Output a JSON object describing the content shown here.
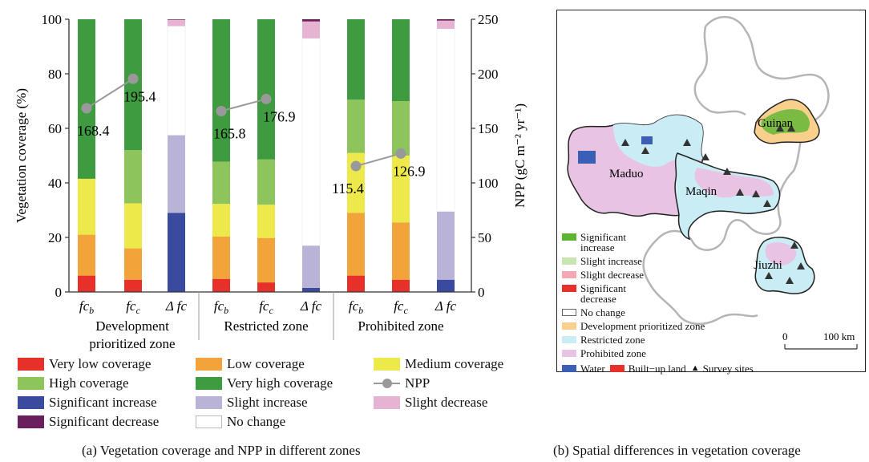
{
  "chart_data": [
    {
      "type": "bar",
      "subtype": "stacked-bar-with-line",
      "ylabel": "Vegetation coverage (%)",
      "y2label": "NPP (gC m⁻² yr⁻¹)",
      "ylim": [
        0,
        100
      ],
      "y2lim": [
        0,
        250
      ],
      "yticks": [
        "0",
        "20",
        "40",
        "60",
        "80",
        "100"
      ],
      "y2ticks": [
        "0",
        "50",
        "100",
        "150",
        "200",
        "250"
      ],
      "groups": [
        {
          "name_lines": [
            "Development",
            "prioritized zone"
          ],
          "categories": [
            "fc_b",
            "fc_c",
            "Δ fc"
          ]
        },
        {
          "name_lines": [
            "Restricted zone"
          ],
          "categories": [
            "fc_b",
            "fc_c",
            "Δ fc"
          ]
        },
        {
          "name_lines": [
            "Prohibited zone"
          ],
          "categories": [
            "fc_b",
            "fc_c",
            "Δ fc"
          ]
        }
      ],
      "coverage_series": [
        {
          "name": "Very low coverage",
          "color": "#e8302a",
          "values": [
            6,
            4.5,
            4.8,
            3.5,
            6,
            4.5
          ]
        },
        {
          "name": "Low coverage",
          "color": "#f2a43a",
          "values": [
            15,
            11.5,
            15.5,
            16.3,
            23,
            21
          ]
        },
        {
          "name": "Medium coverage",
          "color": "#ede94a",
          "values": [
            20.5,
            16.5,
            12,
            12.2,
            22,
            24.5
          ]
        },
        {
          "name": "High coverage",
          "color": "#8dc45c",
          "values": [
            0,
            19.5,
            15.5,
            16.6,
            19.5,
            20
          ]
        },
        {
          "name": "Very high coverage",
          "color": "#3f9b3f",
          "values": [
            58.5,
            48,
            52.2,
            51.4,
            29.5,
            30
          ]
        }
      ],
      "change_series": [
        {
          "name": "Significant increase",
          "color": "#3a4a9e",
          "values": [
            29,
            1.5,
            4.5
          ]
        },
        {
          "name": "Slight increase",
          "color": "#b9b3d8",
          "values": [
            28.5,
            15.5,
            25
          ]
        },
        {
          "name": "No change",
          "color": "#ffffff",
          "values": [
            40,
            76,
            67
          ]
        },
        {
          "name": "Slight decrease",
          "color": "#e6b3d3",
          "values": [
            2.3,
            6.2,
            3
          ]
        },
        {
          "name": "Significant decrease",
          "color": "#6b1e5c",
          "values": [
            0.2,
            0.8,
            0.5
          ]
        }
      ],
      "npp": {
        "name": "NPP",
        "color": "#999999",
        "points": [
          {
            "group": 0,
            "bar": "fc_b",
            "value": 168.4,
            "label": "168.4"
          },
          {
            "group": 0,
            "bar": "fc_c",
            "value": 195.4,
            "label": "195.4"
          },
          {
            "group": 1,
            "bar": "fc_b",
            "value": 165.8,
            "label": "165.8"
          },
          {
            "group": 1,
            "bar": "fc_c",
            "value": 176.9,
            "label": "176.9"
          },
          {
            "group": 2,
            "bar": "fc_b",
            "value": 115.4,
            "label": "115.4"
          },
          {
            "group": 2,
            "bar": "fc_c",
            "value": 126.9,
            "label": "126.9"
          }
        ]
      },
      "legend": {
        "placement": "bottom",
        "items": [
          {
            "label": "Very low coverage",
            "color": "#e8302a",
            "kind": "box"
          },
          {
            "label": "Low coverage",
            "color": "#f2a43a",
            "kind": "box"
          },
          {
            "label": "Medium coverage",
            "color": "#ede94a",
            "kind": "box"
          },
          {
            "label": "High coverage",
            "color": "#8dc45c",
            "kind": "box"
          },
          {
            "label": "Very high coverage",
            "color": "#3f9b3f",
            "kind": "box"
          },
          {
            "label": "NPP",
            "color": "#999999",
            "kind": "line"
          },
          {
            "label": "Significant increase",
            "color": "#3a4a9e",
            "kind": "box"
          },
          {
            "label": "Slight increase",
            "color": "#b9b3d8",
            "kind": "box"
          },
          {
            "label": "Slight decrease",
            "color": "#e6b3d3",
            "kind": "box"
          },
          {
            "label": "Significant decrease",
            "color": "#6b1e5c",
            "kind": "box"
          },
          {
            "label": "No change",
            "color": "#ffffff",
            "kind": "box"
          }
        ]
      }
    }
  ],
  "captions": {
    "a": "(a) Vegetation coverage and NPP in different zones",
    "b": "(b) Spatial differences in vegetation coverage"
  },
  "map": {
    "region_labels": [
      "Guinan",
      "Maduo",
      "Maqin",
      "Jiuzhi"
    ],
    "scale_zero": "0",
    "scale_label": "100 km",
    "legend": [
      {
        "label_lines": [
          "Significant",
          "increase"
        ],
        "color": "#5bb531"
      },
      {
        "label_lines": [
          "Slight increase"
        ],
        "color": "#c8e6b0"
      },
      {
        "label_lines": [
          "Slight decrease"
        ],
        "color": "#f4a8b4"
      },
      {
        "label_lines": [
          "Significant",
          "decrease"
        ],
        "color": "#e8302a"
      },
      {
        "label_lines": [
          "No change"
        ],
        "color": "#ffffff"
      },
      {
        "label_lines": [
          "Development prioritized zone"
        ],
        "color": "#f8d08c"
      },
      {
        "label_lines": [
          "Restricted zone"
        ],
        "color": "#c9ecf5"
      },
      {
        "label_lines": [
          "Prohibited zone"
        ],
        "color": "#e9c3e3"
      }
    ],
    "bottom_legend": [
      {
        "label": "Water",
        "color": "#3a5fb5",
        "kind": "box"
      },
      {
        "label": "Built−up land",
        "color": "#e8302a",
        "kind": "box"
      },
      {
        "label": "Survey sites",
        "color": "#222222",
        "kind": "triangle"
      }
    ]
  }
}
